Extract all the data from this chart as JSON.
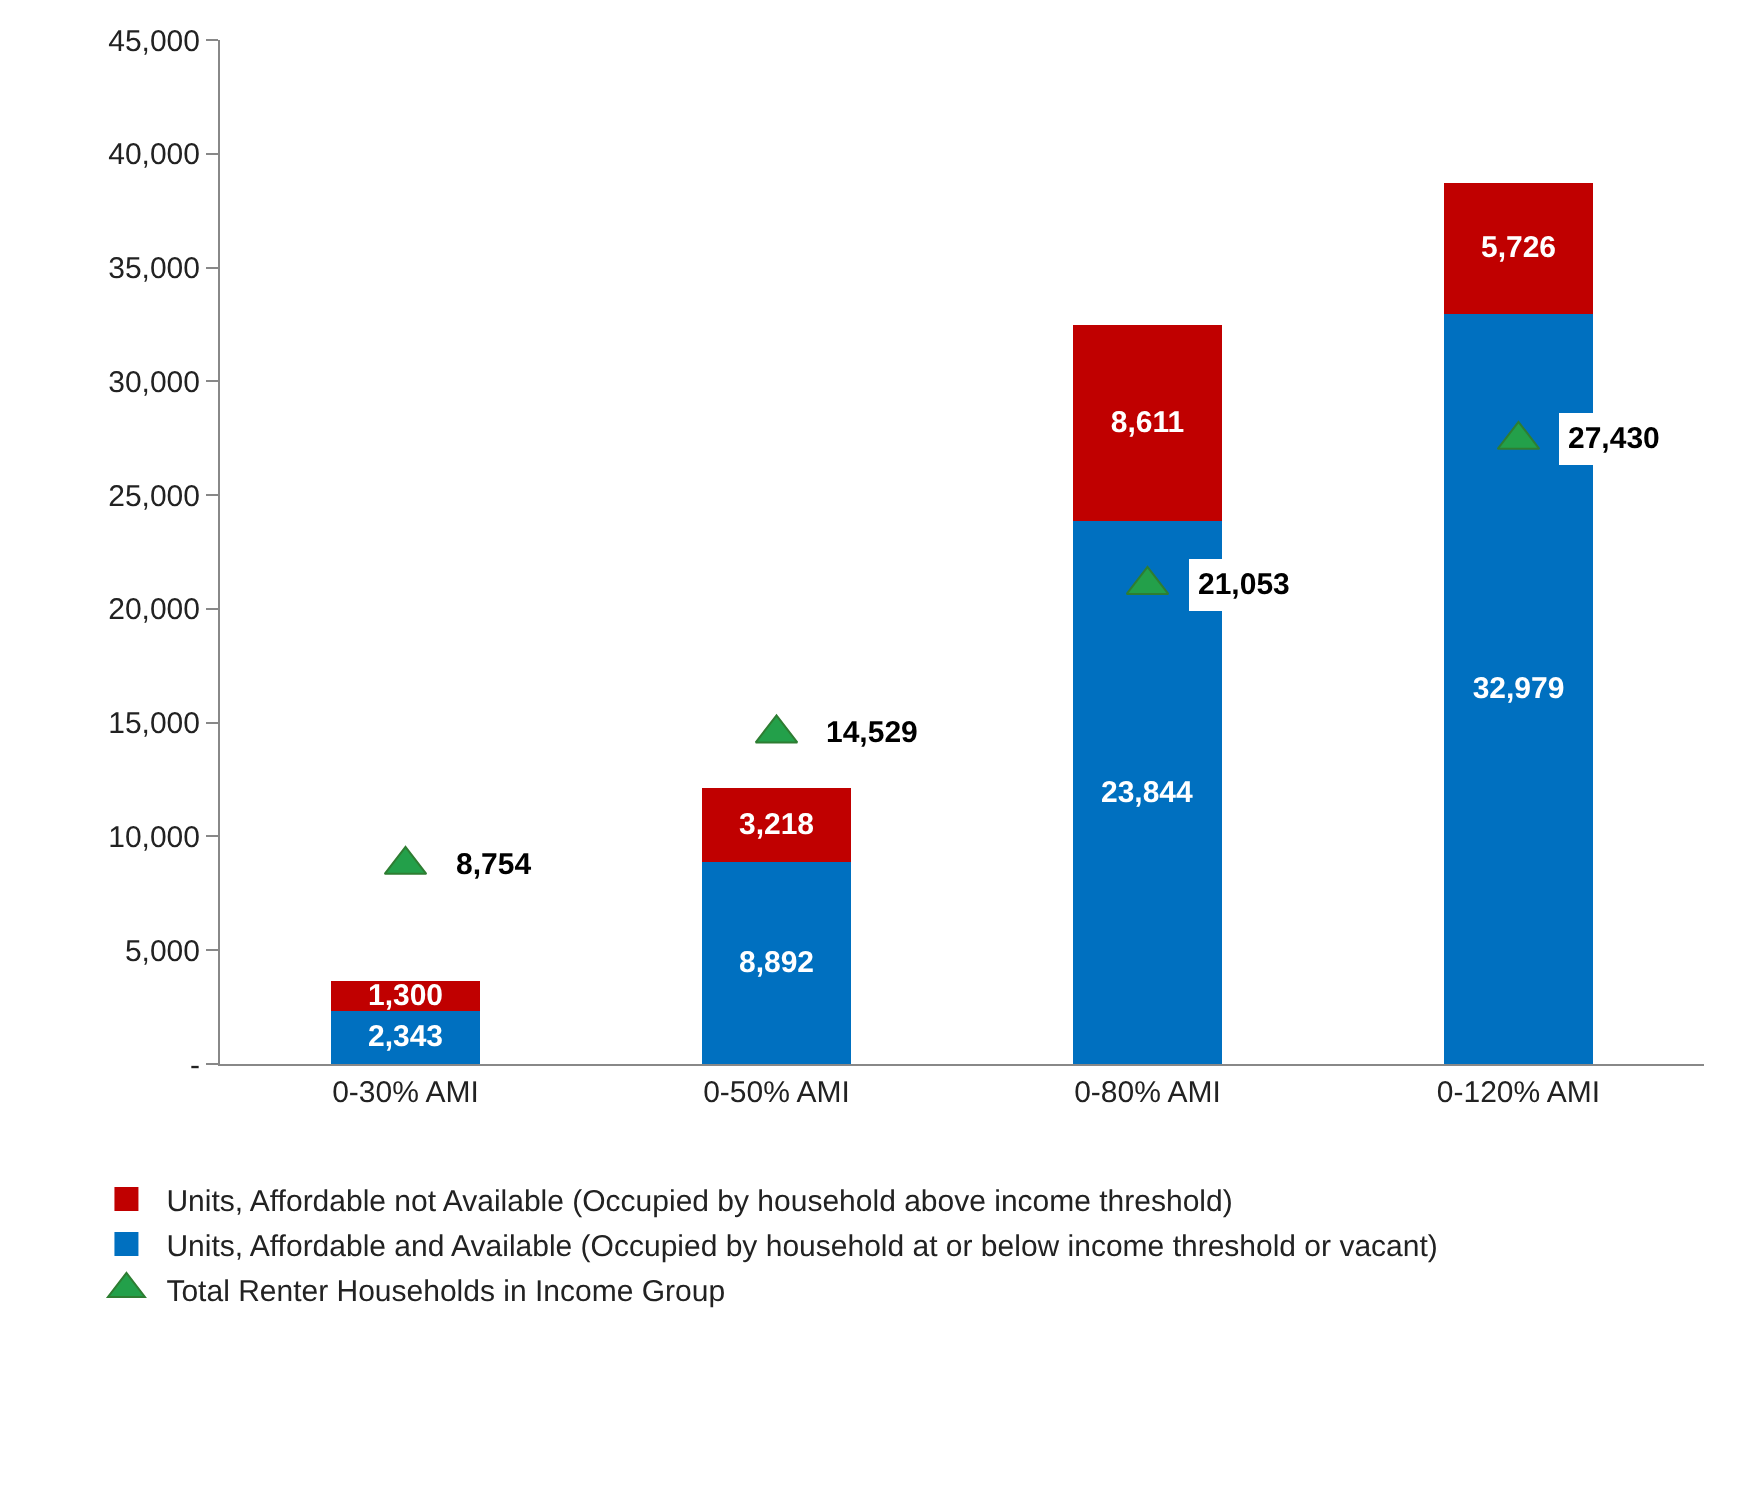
{
  "chart_data": {
    "type": "bar",
    "stacked": true,
    "categories": [
      "0-30% AMI",
      "0-50% AMI",
      "0-80% AMI",
      "0-120% AMI"
    ],
    "series": [
      {
        "name": "Units, Affordable and Available (Occupied by household at or below income threshold or vacant)",
        "color": "#0070c0",
        "values": [
          2343,
          8892,
          23844,
          32979
        ],
        "value_labels": [
          "2,343",
          "8,892",
          "23,844",
          "32,979"
        ]
      },
      {
        "name": "Units, Affordable not Available (Occupied by household above income threshold)",
        "color": "#c00000",
        "values": [
          1300,
          3218,
          8611,
          5726
        ],
        "value_labels": [
          "1,300",
          "3,218",
          "8,611",
          "5,726"
        ]
      },
      {
        "name": "Total Renter Households in Income Group",
        "type": "scatter",
        "marker": "triangle",
        "color": "#23a04a",
        "values": [
          8754,
          14529,
          21053,
          27430
        ],
        "value_labels": [
          "8,754",
          "14,529",
          "21,053",
          "27,430"
        ]
      }
    ],
    "ylim": [
      0,
      45000
    ],
    "yticks": [
      {
        "value": 0,
        "label": "-"
      },
      {
        "value": 5000,
        "label": "5,000"
      },
      {
        "value": 10000,
        "label": "10,000"
      },
      {
        "value": 15000,
        "label": "15,000"
      },
      {
        "value": 20000,
        "label": "20,000"
      },
      {
        "value": 25000,
        "label": "25,000"
      },
      {
        "value": 30000,
        "label": "30,000"
      },
      {
        "value": 35000,
        "label": "35,000"
      },
      {
        "value": 40000,
        "label": "40,000"
      },
      {
        "value": 45000,
        "label": "45,000"
      }
    ],
    "legend": "bottom"
  }
}
